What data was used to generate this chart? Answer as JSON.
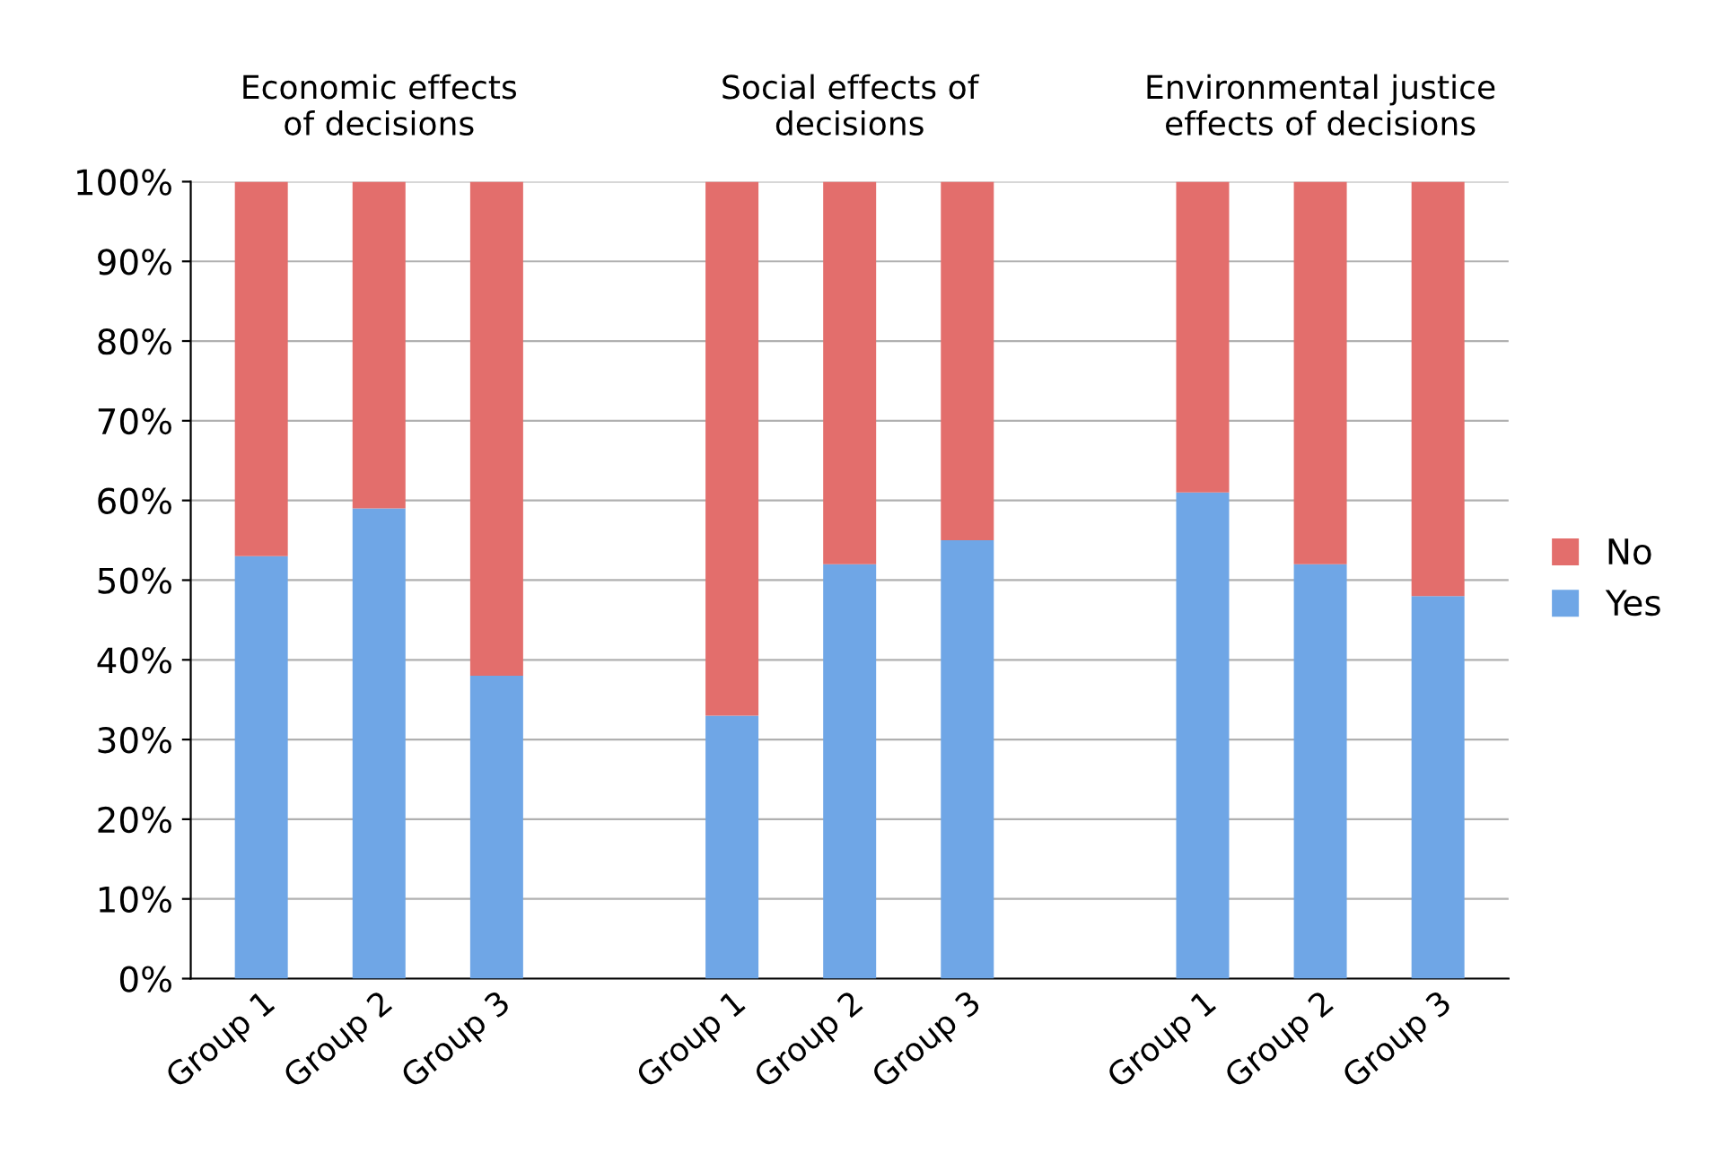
{
  "chart_data": {
    "type": "bar",
    "stacked": true,
    "categories": [
      "Group 1",
      "Group 2",
      "Group 3",
      null,
      "Group 1",
      "Group 2",
      "Group 3",
      null,
      "Group 1",
      "Group 2",
      "Group 3"
    ],
    "series": [
      {
        "name": "Yes",
        "color": "#6fa6e6",
        "values": [
          53,
          59,
          38,
          null,
          33,
          52,
          55,
          null,
          61,
          52,
          48
        ]
      },
      {
        "name": "No",
        "color": "#e36e6c",
        "values": [
          47,
          41,
          62,
          null,
          67,
          48,
          45,
          null,
          39,
          48,
          52
        ]
      }
    ],
    "annotations": [
      "Economic effects\nof decisions",
      "Social effects of\ndecisions",
      "Environmental justice\neffects of decisions"
    ],
    "ylim": [
      0,
      100
    ],
    "yticks": [
      {
        "value": 0,
        "label": "0%"
      },
      {
        "value": 10,
        "label": "10%"
      },
      {
        "value": 20,
        "label": "20%"
      },
      {
        "value": 30,
        "label": "30%"
      },
      {
        "value": 40,
        "label": "40%"
      },
      {
        "value": 50,
        "label": "50%"
      },
      {
        "value": 60,
        "label": "60%"
      },
      {
        "value": 70,
        "label": "70%"
      },
      {
        "value": 80,
        "label": "80%"
      },
      {
        "value": 90,
        "label": "90%"
      },
      {
        "value": 100,
        "label": "100%"
      }
    ],
    "grid": "y",
    "legend": "right"
  }
}
